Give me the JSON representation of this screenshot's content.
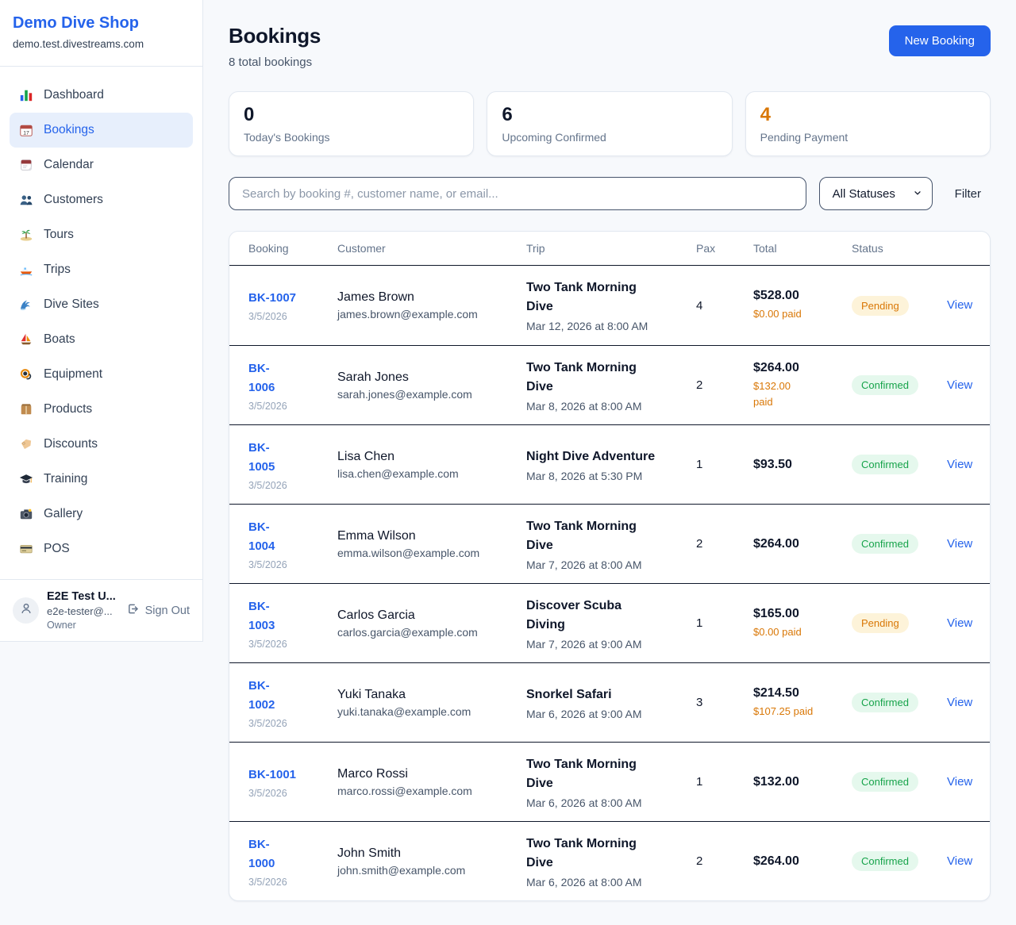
{
  "colors": {
    "accent": "#2563eb",
    "orange": "#d97706",
    "green": "#16a34a",
    "dark_text": "#0f172a",
    "pending_bg": "#fdf3d9",
    "confirmed_bg": "#e5f8ed"
  },
  "brand": {
    "name": "Demo Dive Shop",
    "domain": "demo.test.divestreams.com"
  },
  "sidebar": {
    "items": [
      {
        "icon": "dashboard",
        "label": "Dashboard",
        "active": false
      },
      {
        "icon": "bookings",
        "label": "Bookings",
        "active": true
      },
      {
        "icon": "calendar",
        "label": "Calendar",
        "active": false
      },
      {
        "icon": "customers",
        "label": "Customers",
        "active": false
      },
      {
        "icon": "tours",
        "label": "Tours",
        "active": false
      },
      {
        "icon": "trips",
        "label": "Trips",
        "active": false
      },
      {
        "icon": "dive-sites",
        "label": "Dive Sites",
        "active": false
      },
      {
        "icon": "boats",
        "label": "Boats",
        "active": false
      },
      {
        "icon": "equipment",
        "label": "Equipment",
        "active": false
      },
      {
        "icon": "products",
        "label": "Products",
        "active": false
      },
      {
        "icon": "discounts",
        "label": "Discounts",
        "active": false
      },
      {
        "icon": "training",
        "label": "Training",
        "active": false
      },
      {
        "icon": "gallery",
        "label": "Gallery",
        "active": false
      },
      {
        "icon": "pos",
        "label": "POS",
        "active": false
      }
    ]
  },
  "user": {
    "name": "E2E Test U...",
    "email": "e2e-tester@...",
    "role": "Owner",
    "sign_out": "Sign Out"
  },
  "header": {
    "title": "Bookings",
    "subtitle": "8 total bookings",
    "new_booking": "New Booking"
  },
  "stats": [
    {
      "value": "0",
      "label": "Today's Bookings",
      "highlight": false
    },
    {
      "value": "6",
      "label": "Upcoming Confirmed",
      "highlight": false
    },
    {
      "value": "4",
      "label": "Pending Payment",
      "highlight": true
    }
  ],
  "filters": {
    "search_placeholder": "Search by booking #, customer name, or email...",
    "status_select": "All Statuses",
    "filter_label": "Filter"
  },
  "table": {
    "columns": [
      "Booking",
      "Customer",
      "Trip",
      "Pax",
      "Total",
      "Status"
    ],
    "status_colors": {
      "Pending": {
        "bg": "#fdf3d9",
        "text": "#d97706"
      },
      "Confirmed": {
        "bg": "#e5f8ed",
        "text": "#16a34a"
      }
    },
    "rows": [
      {
        "id_lines": [
          "BK-1007"
        ],
        "date": "3/5/2026",
        "name": "James Brown",
        "email": "james.brown@example.com",
        "trip_lines": [
          "Two Tank Morning",
          "Dive"
        ],
        "trip_time": "Mar 12, 2026 at 8:00 AM",
        "pax": "4",
        "total": "$528.00",
        "paid_lines": [
          "$0.00 paid"
        ],
        "status": "Pending",
        "action": "View"
      },
      {
        "id_lines": [
          "BK-",
          "1006"
        ],
        "date": "3/5/2026",
        "name": "Sarah Jones",
        "email": "sarah.jones@example.com",
        "trip_lines": [
          "Two Tank Morning",
          "Dive"
        ],
        "trip_time": "Mar 8, 2026 at 8:00 AM",
        "pax": "2",
        "total": "$264.00",
        "paid_lines": [
          "$132.00",
          "paid"
        ],
        "status": "Confirmed",
        "action": "View"
      },
      {
        "id_lines": [
          "BK-",
          "1005"
        ],
        "date": "3/5/2026",
        "name": "Lisa Chen",
        "email": "lisa.chen@example.com",
        "trip_lines": [
          "Night Dive Adventure"
        ],
        "trip_time": "Mar 8, 2026 at 5:30 PM",
        "pax": "1",
        "total": "$93.50",
        "paid_lines": [],
        "status": "Confirmed",
        "action": "View"
      },
      {
        "id_lines": [
          "BK-",
          "1004"
        ],
        "date": "3/5/2026",
        "name": "Emma Wilson",
        "email": "emma.wilson@example.com",
        "trip_lines": [
          "Two Tank Morning",
          "Dive"
        ],
        "trip_time": "Mar 7, 2026 at 8:00 AM",
        "pax": "2",
        "total": "$264.00",
        "paid_lines": [],
        "status": "Confirmed",
        "action": "View"
      },
      {
        "id_lines": [
          "BK-",
          "1003"
        ],
        "date": "3/5/2026",
        "name": "Carlos Garcia",
        "email": "carlos.garcia@example.com",
        "trip_lines": [
          "Discover Scuba",
          "Diving"
        ],
        "trip_time": "Mar 7, 2026 at 9:00 AM",
        "pax": "1",
        "total": "$165.00",
        "paid_lines": [
          "$0.00 paid"
        ],
        "status": "Pending",
        "action": "View"
      },
      {
        "id_lines": [
          "BK-",
          "1002"
        ],
        "date": "3/5/2026",
        "name": "Yuki Tanaka",
        "email": "yuki.tanaka@example.com",
        "trip_lines": [
          "Snorkel Safari"
        ],
        "trip_time": "Mar 6, 2026 at 9:00 AM",
        "pax": "3",
        "total": "$214.50",
        "paid_lines": [
          "$107.25 paid"
        ],
        "status": "Confirmed",
        "action": "View"
      },
      {
        "id_lines": [
          "BK-1001"
        ],
        "date": "3/5/2026",
        "name": "Marco Rossi",
        "email": "marco.rossi@example.com",
        "trip_lines": [
          "Two Tank Morning",
          "Dive"
        ],
        "trip_time": "Mar 6, 2026 at 8:00 AM",
        "pax": "1",
        "total": "$132.00",
        "paid_lines": [],
        "status": "Confirmed",
        "action": "View"
      },
      {
        "id_lines": [
          "BK-",
          "1000"
        ],
        "date": "3/5/2026",
        "name": "John Smith",
        "email": "john.smith@example.com",
        "trip_lines": [
          "Two Tank Morning",
          "Dive"
        ],
        "trip_time": "Mar 6, 2026 at 8:00 AM",
        "pax": "2",
        "total": "$264.00",
        "paid_lines": [],
        "status": "Confirmed",
        "action": "View"
      }
    ]
  }
}
